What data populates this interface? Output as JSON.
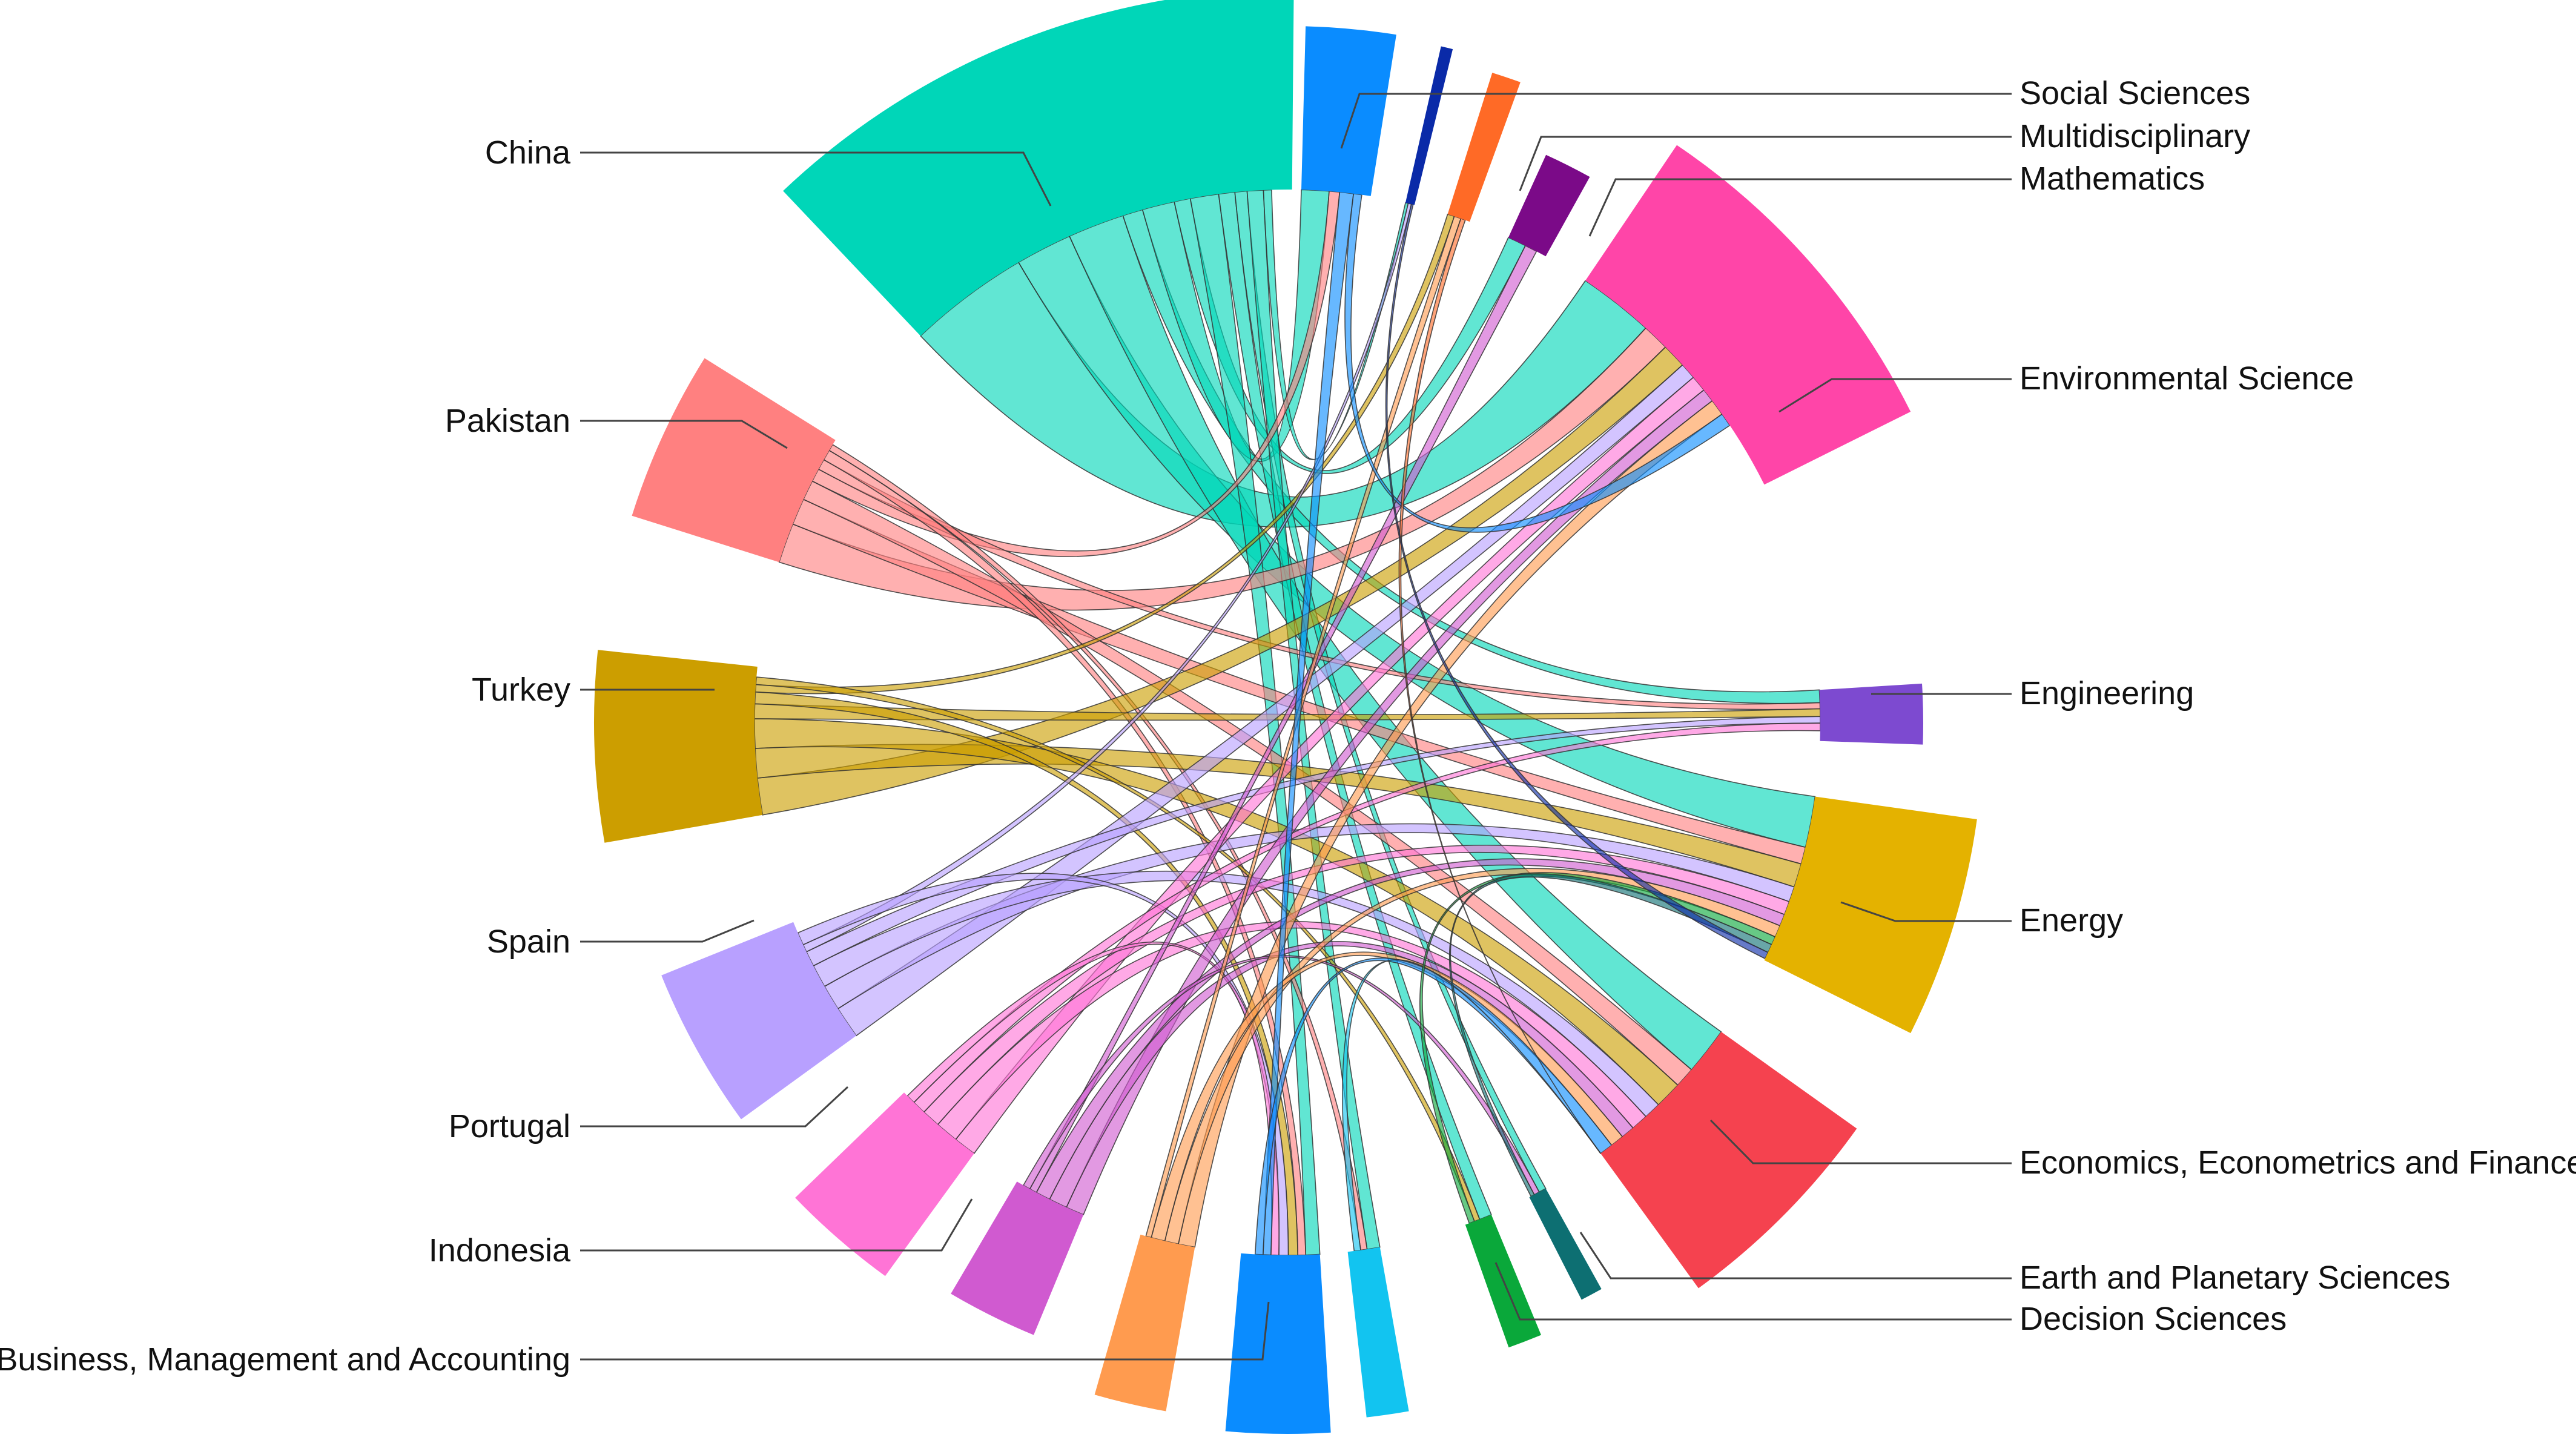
{
  "diagram": {
    "type": "chord",
    "nodes": [
      {
        "id": "social_sciences",
        "label": "Social Sciences",
        "color": "#0a8cff"
      },
      {
        "id": "multidisciplinary",
        "label": "Multidisciplinary",
        "color": "#0a2aa8"
      },
      {
        "id": "mathematics",
        "label": "Mathematics",
        "color": "#ff6a26"
      },
      {
        "id": "math_purple",
        "label": "",
        "color": "#7b0a88"
      },
      {
        "id": "environmental_science",
        "label": "Environmental Science",
        "color": "#ff45a8"
      },
      {
        "id": "engineering",
        "label": "Engineering",
        "color": "#7d4ad0"
      },
      {
        "id": "energy",
        "label": "Energy",
        "color": "#e4b200"
      },
      {
        "id": "economics",
        "label": "Economics, Econometrics and Finance",
        "color": "#f5424f"
      },
      {
        "id": "earth_planetary",
        "label": "Earth and Planetary Sciences",
        "color": "#0d6f72"
      },
      {
        "id": "decision_sciences",
        "label": "Decision Sciences",
        "color": "#0aa83a"
      },
      {
        "id": "cyan_small",
        "label": "",
        "color": "#12c4f0"
      },
      {
        "id": "business",
        "label": "Business, Management and Accounting",
        "color": "#0a8cff"
      },
      {
        "id": "orange_small",
        "label": "",
        "color": "#ff9b4f"
      },
      {
        "id": "indonesia",
        "label": "Indonesia",
        "color": "#d05ad0"
      },
      {
        "id": "portugal",
        "label": "Portugal",
        "color": "#ff74d6"
      },
      {
        "id": "spain",
        "label": "Spain",
        "color": "#b8a0ff"
      },
      {
        "id": "turkey",
        "label": "Turkey",
        "color": "#cc9e00"
      },
      {
        "id": "pakistan",
        "label": "Pakistan",
        "color": "#ff8080"
      },
      {
        "id": "china",
        "label": "China",
        "color": "#00d6b8"
      }
    ]
  }
}
